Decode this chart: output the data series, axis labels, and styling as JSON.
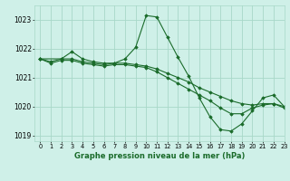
{
  "title": "Graphe pression niveau de la mer (hPa)",
  "bg_color": "#cff0e8",
  "grid_color": "#a8d8c8",
  "line_color": "#1a6b2a",
  "xlim": [
    -0.5,
    23
  ],
  "ylim": [
    1018.8,
    1023.5
  ],
  "yticks": [
    1019,
    1020,
    1021,
    1022,
    1023
  ],
  "xticks": [
    0,
    1,
    2,
    3,
    4,
    5,
    6,
    7,
    8,
    9,
    10,
    11,
    12,
    13,
    14,
    15,
    16,
    17,
    18,
    19,
    20,
    21,
    22,
    23
  ],
  "series": [
    {
      "x": [
        0,
        1,
        2,
        3,
        4,
        5,
        6,
        7,
        8,
        9,
        10,
        11,
        12,
        13,
        14,
        15,
        16,
        17,
        18,
        19,
        20,
        21,
        22,
        23
      ],
      "y": [
        1021.65,
        1021.55,
        1021.65,
        1021.65,
        1021.55,
        1021.5,
        1021.45,
        1021.5,
        1021.5,
        1021.45,
        1021.4,
        1021.3,
        1021.15,
        1021.0,
        1020.85,
        1020.65,
        1020.5,
        1020.35,
        1020.2,
        1020.1,
        1020.05,
        1020.1,
        1020.1,
        1020.0
      ]
    },
    {
      "x": [
        0,
        1,
        2,
        3,
        4,
        5,
        6,
        7,
        8,
        9,
        10,
        11,
        12,
        13,
        14,
        15,
        16,
        17,
        18,
        19,
        20,
        21,
        22,
        23
      ],
      "y": [
        1021.65,
        1021.5,
        1021.6,
        1021.6,
        1021.5,
        1021.45,
        1021.4,
        1021.45,
        1021.45,
        1021.4,
        1021.35,
        1021.2,
        1021.0,
        1020.8,
        1020.6,
        1020.4,
        1020.2,
        1019.95,
        1019.75,
        1019.75,
        1019.95,
        1020.05,
        1020.1,
        1019.95
      ]
    },
    {
      "x": [
        0,
        2,
        3,
        4,
        5,
        6,
        7,
        8,
        9,
        10,
        11,
        12,
        13,
        14,
        15,
        16,
        17,
        18,
        19,
        20,
        21,
        22,
        23
      ],
      "y": [
        1021.65,
        1021.65,
        1021.9,
        1021.65,
        1021.55,
        1021.5,
        1021.5,
        1021.65,
        1022.05,
        1023.15,
        1023.1,
        1022.4,
        1021.7,
        1021.05,
        1020.3,
        1019.65,
        1019.2,
        1019.15,
        1019.4,
        1019.85,
        1020.3,
        1020.4,
        1020.0
      ]
    }
  ]
}
